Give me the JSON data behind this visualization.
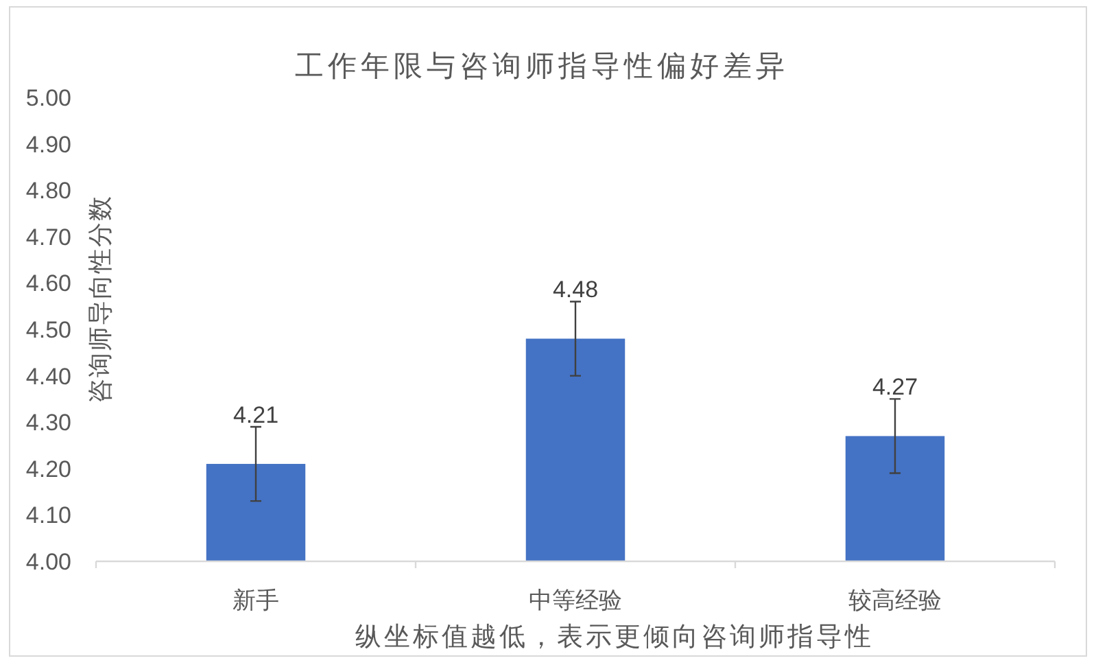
{
  "chart_data": {
    "type": "bar",
    "title": "工作年限与咨询师指导性偏好差异",
    "ylabel": "咨询师导向性分数",
    "xlabel": "纵坐标值越低，表示更倾向咨询师指导性",
    "categories": [
      "新手",
      "中等经验",
      "较高经验"
    ],
    "values": [
      4.21,
      4.48,
      4.27
    ],
    "errors": [
      0.08,
      0.08,
      0.08
    ],
    "color": "#4472c4",
    "data_labels": true,
    "ylim": [
      4.0,
      5.0
    ],
    "yticks": [
      {
        "value": 4.0,
        "label": "4.00"
      },
      {
        "value": 4.1,
        "label": "4.10"
      },
      {
        "value": 4.2,
        "label": "4.20"
      },
      {
        "value": 4.3,
        "label": "4.30"
      },
      {
        "value": 4.4,
        "label": "4.40"
      },
      {
        "value": 4.5,
        "label": "4.50"
      },
      {
        "value": 4.6,
        "label": "4.60"
      },
      {
        "value": 4.7,
        "label": "4.70"
      },
      {
        "value": 4.8,
        "label": "4.80"
      },
      {
        "value": 4.9,
        "label": "4.90"
      },
      {
        "value": 5.0,
        "label": "5.00"
      }
    ]
  }
}
